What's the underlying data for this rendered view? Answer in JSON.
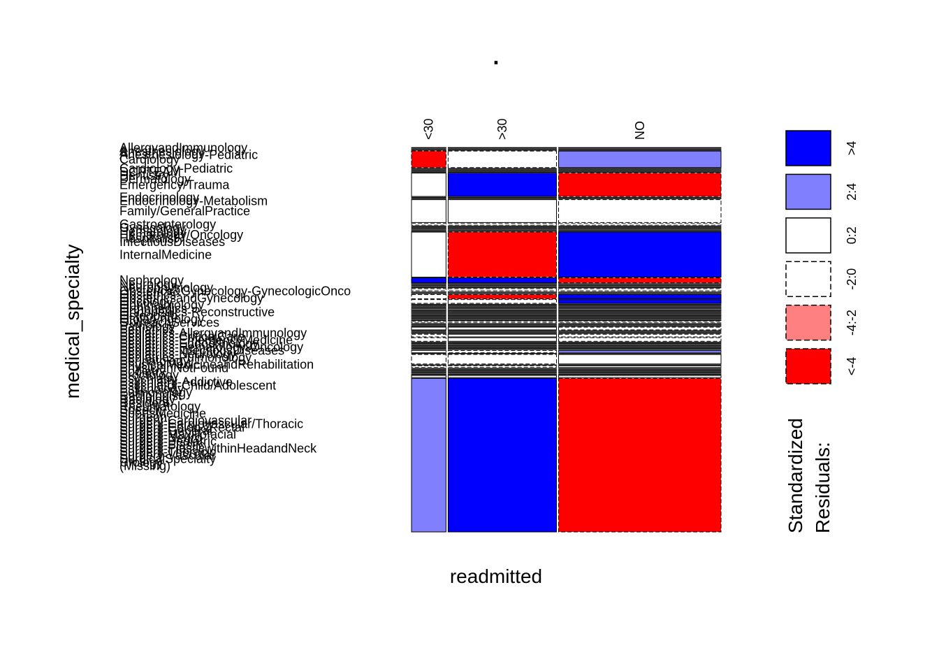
{
  "chart_data": {
    "type": "mosaic",
    "title": ".",
    "xlabel": "readmitted",
    "ylabel": "medical_specialty",
    "columns": [
      "<30",
      ">30",
      "NO"
    ],
    "column_shares": [
      0.113,
      0.355,
      0.532
    ],
    "rows": [
      {
        "name": "AllergyandImmunology",
        "share": 0.0002,
        "residuals": [
          0,
          0,
          0
        ]
      },
      {
        "name": "Anesthesiology",
        "share": 0.0001,
        "residuals": [
          0,
          0,
          0
        ]
      },
      {
        "name": "Anesthesiology-Pediatric",
        "share": 0.0002,
        "residuals": [
          0,
          0,
          0
        ]
      },
      {
        "name": "Cardiology",
        "share": 0.0526,
        "residuals": [
          -5,
          -1,
          3
        ]
      },
      {
        "name": "Cardiology-Pediatric",
        "share": 0.0001,
        "residuals": [
          0,
          0,
          0
        ]
      },
      {
        "name": "DCPTEAM",
        "share": 0.0001,
        "residuals": [
          0,
          0,
          0
        ]
      },
      {
        "name": "Dentistry",
        "share": 0.0001,
        "residuals": [
          0,
          0,
          0
        ]
      },
      {
        "name": "Dermatology",
        "share": 0.0001,
        "residuals": [
          0,
          0,
          0
        ]
      },
      {
        "name": "Emergency/Trauma",
        "share": 0.0744,
        "residuals": [
          1,
          5,
          -5
        ]
      },
      {
        "name": "Endocrinology",
        "share": 0.0012,
        "residuals": [
          0,
          0,
          0
        ]
      },
      {
        "name": "Endocrinology-Metabolism",
        "share": 0.0001,
        "residuals": [
          0,
          0,
          0
        ]
      },
      {
        "name": "Family/GeneralPractice",
        "share": 0.0731,
        "residuals": [
          1,
          1,
          -1
        ]
      },
      {
        "name": "Gastroenterology",
        "share": 0.0056,
        "residuals": [
          -1,
          -1,
          -1
        ]
      },
      {
        "name": "Gynecology",
        "share": 0.0006,
        "residuals": [
          0,
          0,
          0
        ]
      },
      {
        "name": "Hematology",
        "share": 0.0008,
        "residuals": [
          0,
          0,
          0
        ]
      },
      {
        "name": "Hematology/Oncology",
        "share": 0.002,
        "residuals": [
          0,
          0,
          0
        ]
      },
      {
        "name": "Hospitalist",
        "share": 0.0006,
        "residuals": [
          0,
          0,
          0
        ]
      },
      {
        "name": "InfectiousDiseases",
        "share": 0.0004,
        "residuals": [
          0,
          0,
          0
        ]
      },
      {
        "name": "InternalMedicine",
        "share": 0.1438,
        "residuals": [
          1,
          -5,
          5
        ]
      },
      {
        "name": "Nephrology",
        "share": 0.0158,
        "residuals": [
          5,
          5,
          -5
        ]
      },
      {
        "name": "Neurology",
        "share": 0.002,
        "residuals": [
          0,
          0,
          0
        ]
      },
      {
        "name": "Neurophysiology",
        "share": 0.0001,
        "residuals": [
          0,
          0,
          0
        ]
      },
      {
        "name": "Obsterics&Gynecology-GynecologicOnco",
        "share": 0.0001,
        "residuals": [
          0,
          0,
          0
        ]
      },
      {
        "name": "Obstetrics",
        "share": 0.0001,
        "residuals": [
          0,
          0,
          0
        ]
      },
      {
        "name": "ObstetricsandGynecology",
        "share": 0.0067,
        "residuals": [
          -1,
          -1,
          -1
        ]
      },
      {
        "name": "Oncology",
        "share": 0.0029,
        "residuals": [
          0,
          0,
          0
        ]
      },
      {
        "name": "Ophthalmology",
        "share": 0.0001,
        "residuals": [
          0,
          0,
          0
        ]
      },
      {
        "name": "Orthopedics",
        "share": 0.0136,
        "residuals": [
          -1,
          -5,
          5
        ]
      },
      {
        "name": "Orthopedics-Reconstructive",
        "share": 0.0122,
        "residuals": [
          -1,
          -1,
          5
        ]
      },
      {
        "name": "Osteopath",
        "share": 0.0004,
        "residuals": [
          0,
          0,
          0
        ]
      },
      {
        "name": "Otolaryngology",
        "share": 0.0012,
        "residuals": [
          0,
          0,
          0
        ]
      },
      {
        "name": "OutreachServices",
        "share": 0.0001,
        "residuals": [
          0,
          0,
          0
        ]
      },
      {
        "name": "Pathology",
        "share": 0.0002,
        "residuals": [
          0,
          0,
          0
        ]
      },
      {
        "name": "Pediatrics",
        "share": 0.0025,
        "residuals": [
          0,
          0,
          0
        ]
      },
      {
        "name": "Pediatrics-AllergyandImmunology",
        "share": 0.0001,
        "residuals": [
          0,
          0,
          0
        ]
      },
      {
        "name": "Pediatrics-CriticalCare",
        "share": 0.0009,
        "residuals": [
          0,
          0,
          0
        ]
      },
      {
        "name": "Pediatrics-EmergencyMedicine",
        "share": 0.0001,
        "residuals": [
          0,
          0,
          0
        ]
      },
      {
        "name": "Pediatrics-Endocrinology",
        "share": 0.0016,
        "residuals": [
          0,
          0,
          0
        ]
      },
      {
        "name": "Pediatrics-Hematology-Oncology",
        "share": 0.0001,
        "residuals": [
          0,
          0,
          0
        ]
      },
      {
        "name": "Pediatrics-InfectiousDiseases",
        "share": 0.0001,
        "residuals": [
          0,
          0,
          0
        ]
      },
      {
        "name": "Pediatrics-Neurology",
        "share": 0.0001,
        "residuals": [
          0,
          0,
          0
        ]
      },
      {
        "name": "Pediatrics-Pulmonology",
        "share": 0.0003,
        "residuals": [
          0,
          0,
          0
        ]
      },
      {
        "name": "Perinatology",
        "share": 0.0001,
        "residuals": [
          0,
          0,
          0
        ]
      },
      {
        "name": "PhysicalMedicineandRehabilitation",
        "share": 0.0039,
        "residuals": [
          -1,
          -1,
          -1
        ]
      },
      {
        "name": "PhysicianNotFound",
        "share": 0.0001,
        "residuals": [
          0,
          0,
          0
        ]
      },
      {
        "name": "Podiatry",
        "share": 0.0001,
        "residuals": [
          0,
          0,
          0
        ]
      },
      {
        "name": "Proctology",
        "share": 0.0001,
        "residuals": [
          0,
          0,
          0
        ]
      },
      {
        "name": "Psychiatry",
        "share": 0.0085,
        "residuals": [
          1,
          1,
          -1
        ]
      },
      {
        "name": "Psychiatry-Addictive",
        "share": 0.0001,
        "residuals": [
          0,
          0,
          0
        ]
      },
      {
        "name": "Psychiatry-Child/Adolescent",
        "share": 0.0001,
        "residuals": [
          0,
          0,
          0
        ]
      },
      {
        "name": "Psychology",
        "share": 0.0001,
        "residuals": [
          0,
          0,
          0
        ]
      },
      {
        "name": "Pulmonology",
        "share": 0.0085,
        "residuals": [
          -1,
          1,
          -1
        ]
      },
      {
        "name": "Radiologist",
        "share": 0.0113,
        "residuals": [
          -1,
          1,
          -1
        ]
      },
      {
        "name": "Radiology",
        "share": 0.0001,
        "residuals": [
          0,
          0,
          0
        ]
      },
      {
        "name": "Resident",
        "share": 0.0001,
        "residuals": [
          0,
          0,
          0
        ]
      },
      {
        "name": "Rheumatology",
        "share": 0.0002,
        "residuals": [
          0,
          0,
          0
        ]
      },
      {
        "name": "Speech",
        "share": 0.0001,
        "residuals": [
          0,
          0,
          0
        ]
      },
      {
        "name": "SportsMedicine",
        "share": 0.0001,
        "residuals": [
          0,
          0,
          0
        ]
      },
      {
        "name": "Surgeon",
        "share": 0.0004,
        "residuals": [
          0,
          0,
          0
        ]
      },
      {
        "name": "Surgery-Cardiovascular",
        "share": 0.0001,
        "residuals": [
          0,
          0,
          0
        ]
      },
      {
        "name": "Surgery-Cardiovascular/Thoracic",
        "share": 0.0064,
        "residuals": [
          0,
          -1,
          3
        ]
      },
      {
        "name": "Surgery-Colon&Rectal",
        "share": 0.0001,
        "residuals": [
          0,
          0,
          0
        ]
      },
      {
        "name": "Surgery-General",
        "share": 0.0303,
        "residuals": [
          -1,
          -1,
          1
        ]
      },
      {
        "name": "Surgery-Maxillofacial",
        "share": 0.0001,
        "residuals": [
          0,
          0,
          0
        ]
      },
      {
        "name": "Surgery-Neuro",
        "share": 0.0046,
        "residuals": [
          -1,
          -1,
          0
        ]
      },
      {
        "name": "Surgery-Pediatric",
        "share": 0.0001,
        "residuals": [
          0,
          0,
          0
        ]
      },
      {
        "name": "Surgery-Plastic",
        "share": 0.0001,
        "residuals": [
          0,
          0,
          0
        ]
      },
      {
        "name": "Surgery-PlasticwithinHeadandNeck",
        "share": 0.0001,
        "residuals": [
          0,
          0,
          0
        ]
      },
      {
        "name": "Surgery-Thoracic",
        "share": 0.0001,
        "residuals": [
          0,
          0,
          0
        ]
      },
      {
        "name": "Surgery-Vascular",
        "share": 0.0005,
        "residuals": [
          0,
          0,
          0
        ]
      },
      {
        "name": "SurgicalSpecialty",
        "share": 0.0003,
        "residuals": [
          0,
          0,
          0
        ]
      },
      {
        "name": "Urology",
        "share": 0.0068,
        "residuals": [
          0,
          0,
          0
        ]
      },
      {
        "name": "(Missing)",
        "share": 0.4908,
        "residuals": [
          3,
          5,
          -5
        ]
      }
    ],
    "shown_labels": [
      {
        "text": "AllergyandImmunology",
        "row": 0
      },
      {
        "text": "Anesthesiology",
        "row": 1
      },
      {
        "text": "Anesthesiology-Pediatric",
        "row": 2
      },
      {
        "text": "Cardiology",
        "row": 3
      },
      {
        "text": "Cardiology-Pediatric",
        "row": 4
      },
      {
        "text": "DCPTEAM",
        "row": 5
      },
      {
        "text": "Dentistry",
        "row": 6
      },
      {
        "text": "Dermatology",
        "row": 7
      },
      {
        "text": "Emergency/Trauma",
        "row": 8
      },
      {
        "text": "Endocrinology",
        "row": 9
      },
      {
        "text": "Endocrinology-Metabolism",
        "row": 10
      },
      {
        "text": "Family/GeneralPractice",
        "row": 11
      },
      {
        "text": "Gastroenterology",
        "row": 12
      },
      {
        "text": "Gynecology",
        "row": 13
      },
      {
        "text": "Hematology",
        "row": 14
      },
      {
        "text": "Hematology/Oncology",
        "row": 15
      },
      {
        "text": "Hospitalist",
        "row": 16
      },
      {
        "text": "InfectiousDiseases",
        "row": 17
      },
      {
        "text": "InternalMedicine",
        "row": 18
      },
      {
        "text": "Nephrology",
        "row": 19
      },
      {
        "text": "Neurology",
        "row": 20
      },
      {
        "text": "Neurophysiology",
        "row": 21
      },
      {
        "text": "Obsterics&Gynecology-GynecologicOnco",
        "row": 22
      },
      {
        "text": "Obstetrics",
        "row": 23
      },
      {
        "text": "ObstetricsandGynecology",
        "row": 24
      },
      {
        "text": "Oncology",
        "row": 25
      },
      {
        "text": "Ophthalmology",
        "row": 26
      },
      {
        "text": "Orthopedics",
        "row": 27
      },
      {
        "text": "Orthopedics-Reconstructive",
        "row": 28
      },
      {
        "text": "Osteopath",
        "row": 29
      },
      {
        "text": "Otolaryngology",
        "row": 30
      },
      {
        "text": "OutreachServices",
        "row": 31
      },
      {
        "text": "Pathology",
        "row": 32
      },
      {
        "text": "Pediatrics",
        "row": 33
      },
      {
        "text": "Pediatrics-AllergyandImmunology",
        "row": 34
      },
      {
        "text": "Pediatrics-CriticalCare",
        "row": 35
      },
      {
        "text": "Pediatrics-EmergencyMedicine",
        "row": 36
      },
      {
        "text": "Pediatrics-Endocrinology",
        "row": 37
      },
      {
        "text": "Pediatrics-Hematology-Oncology",
        "row": 38
      },
      {
        "text": "Pediatrics-InfectiousDiseases",
        "row": 39
      },
      {
        "text": "Pediatrics-Neurology",
        "row": 40
      },
      {
        "text": "Pediatrics-Pulmonology",
        "row": 41
      },
      {
        "text": "Perinatology",
        "row": 42
      },
      {
        "text": "PhysicalMedicineandRehabilitation",
        "row": 43
      },
      {
        "text": "PhysicianNotFound",
        "row": 44
      },
      {
        "text": "Podiatry",
        "row": 45
      },
      {
        "text": "Proctology",
        "row": 46
      },
      {
        "text": "Psychiatry",
        "row": 47
      },
      {
        "text": "Psychiatry-Addictive",
        "row": 48
      },
      {
        "text": "Psychiatry-Child/Adolescent",
        "row": 49
      },
      {
        "text": "Psychology",
        "row": 50
      },
      {
        "text": "Pulmonology",
        "row": 51
      },
      {
        "text": "Radiologist",
        "row": 52
      },
      {
        "text": "Radiology",
        "row": 53
      },
      {
        "text": "Resident",
        "row": 54
      },
      {
        "text": "Rheumatology",
        "row": 55
      },
      {
        "text": "Speech",
        "row": 56
      },
      {
        "text": "SportsMedicine",
        "row": 57
      },
      {
        "text": "Surgeon",
        "row": 58
      },
      {
        "text": "Surgery-Cardiovascular",
        "row": 59
      },
      {
        "text": "Surgery-Cardiovascular/Thoracic",
        "row": 60
      },
      {
        "text": "Surgery-Colon&Rectal",
        "row": 61
      },
      {
        "text": "Surgery-General",
        "row": 62
      },
      {
        "text": "Surgery-Maxillofacial",
        "row": 63
      },
      {
        "text": "Surgery-Neuro",
        "row": 64
      },
      {
        "text": "Surgery-Pediatric",
        "row": 65
      },
      {
        "text": "Surgery-Plastic",
        "row": 66
      },
      {
        "text": "Surgery-PlasticwithinHeadandNeck",
        "row": 67
      },
      {
        "text": "Surgery-Thoracic",
        "row": 68
      },
      {
        "text": "Surgery-Vascular",
        "row": 69
      },
      {
        "text": "SurgicalSpecialty",
        "row": 70
      },
      {
        "text": "Urology",
        "row": 71
      },
      {
        "text": "(Missing)",
        "row": 72
      }
    ],
    "legend": {
      "title_lines": [
        "Standardized",
        "Residuals:"
      ],
      "entries": [
        {
          "label": ">4",
          "fill": "#0000ff",
          "dashed": false
        },
        {
          "label": "2:4",
          "fill": "#8080ff",
          "dashed": false
        },
        {
          "label": "0:2",
          "fill": "#ffffff",
          "dashed": false
        },
        {
          "label": "-2:0",
          "fill": "#ffffff",
          "dashed": true
        },
        {
          "label": "-4:-2",
          "fill": "#ff8080",
          "dashed": true
        },
        {
          "label": "<-4",
          "fill": "#ff0000",
          "dashed": true
        }
      ]
    }
  }
}
